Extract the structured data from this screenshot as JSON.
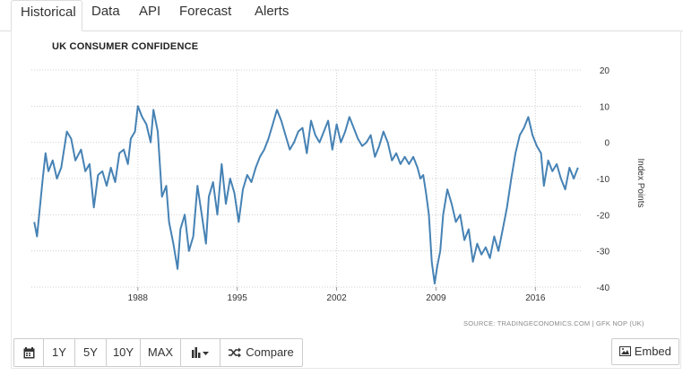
{
  "tabs": [
    {
      "label": "Historical"
    },
    {
      "label": "Data"
    },
    {
      "label": "API"
    },
    {
      "label": "Forecast"
    },
    {
      "label": "Alerts"
    }
  ],
  "toolbar": {
    "calendar_icon": "calendar-icon",
    "ranges": [
      "1Y",
      "5Y",
      "10Y",
      "MAX"
    ],
    "chart_type_icon": "bar-chart-icon",
    "compare_label": "Compare",
    "compare_icon": "shuffle-icon",
    "embed_label": "Embed",
    "embed_icon": "image-icon"
  },
  "colors": {
    "line": "#4682b4",
    "grid": "#cfcfcf"
  },
  "chart_data": {
    "type": "line",
    "title": "UK CONSUMER CONFIDENCE",
    "ylabel": "Index Points",
    "source": "SOURCE: TRADINGECONOMICS.COM | GFK NOP (UK)",
    "xlim": [
      1980.5,
      2019.2
    ],
    "ylim": [
      -40,
      20
    ],
    "yticks": [
      20,
      10,
      0,
      -10,
      -20,
      -30,
      -40
    ],
    "xticks": [
      1988,
      1995,
      2002,
      2009,
      2016
    ],
    "xtick_labels": [
      "1988",
      "1995",
      "2002",
      "2009",
      "2016"
    ],
    "grid": true,
    "series": [
      {
        "name": "UK Consumer Confidence",
        "x": [
          1980.7,
          1980.9,
          1981.1,
          1981.3,
          1981.5,
          1981.7,
          1982.0,
          1982.3,
          1982.6,
          1983.0,
          1983.3,
          1983.6,
          1984.0,
          1984.3,
          1984.6,
          1984.9,
          1985.2,
          1985.5,
          1985.8,
          1986.1,
          1986.4,
          1986.7,
          1987.0,
          1987.3,
          1987.5,
          1987.8,
          1988.0,
          1988.3,
          1988.6,
          1988.9,
          1989.1,
          1989.4,
          1989.7,
          1990.0,
          1990.2,
          1990.5,
          1990.8,
          1991.0,
          1991.3,
          1991.6,
          1991.9,
          1992.2,
          1992.5,
          1992.8,
          1993.0,
          1993.3,
          1993.6,
          1993.9,
          1994.2,
          1994.5,
          1994.8,
          1995.1,
          1995.4,
          1995.7,
          1996.0,
          1996.3,
          1996.6,
          1996.9,
          1997.2,
          1997.5,
          1997.8,
          1998.1,
          1998.4,
          1998.7,
          1999.0,
          1999.3,
          1999.6,
          1999.9,
          2000.2,
          2000.5,
          2000.8,
          2001.1,
          2001.4,
          2001.7,
          2002.0,
          2002.3,
          2002.6,
          2002.9,
          2003.2,
          2003.5,
          2003.8,
          2004.1,
          2004.4,
          2004.7,
          2005.0,
          2005.3,
          2005.6,
          2005.9,
          2006.2,
          2006.5,
          2006.8,
          2007.1,
          2007.4,
          2007.7,
          2007.9,
          2008.1,
          2008.3,
          2008.5,
          2008.7,
          2008.9,
          2009.1,
          2009.3,
          2009.5,
          2009.8,
          2010.1,
          2010.4,
          2010.7,
          2011.0,
          2011.3,
          2011.6,
          2011.9,
          2012.2,
          2012.5,
          2012.8,
          2013.1,
          2013.4,
          2013.7,
          2014.0,
          2014.3,
          2014.6,
          2014.9,
          2015.2,
          2015.5,
          2015.8,
          2016.1,
          2016.4,
          2016.6,
          2016.9,
          2017.2,
          2017.5,
          2017.8,
          2018.1,
          2018.4,
          2018.7,
          2019.0
        ],
        "values": [
          -22,
          -26,
          -18,
          -10,
          -3,
          -8,
          -5,
          -10,
          -7,
          3,
          1,
          -5,
          -2,
          -8,
          -6,
          -18,
          -9,
          -8,
          -12,
          -7,
          -11,
          -3,
          -2,
          -6,
          1,
          3,
          10,
          7,
          5,
          0,
          9,
          3,
          -15,
          -12,
          -22,
          -28,
          -35,
          -24,
          -20,
          -30,
          -26,
          -12,
          -20,
          -28,
          -15,
          -11,
          -20,
          -6,
          -17,
          -10,
          -14,
          -22,
          -13,
          -9,
          -11,
          -7,
          -4,
          -2,
          1,
          5,
          9,
          6,
          2,
          -2,
          0,
          3,
          4,
          -3,
          6,
          2,
          0,
          3,
          6,
          -2,
          5,
          0,
          3,
          7,
          4,
          1,
          -1,
          0,
          2,
          -4,
          -1,
          3,
          0,
          -5,
          -3,
          -6,
          -4,
          -6,
          -4,
          -7,
          -10,
          -9,
          -14,
          -20,
          -33,
          -39,
          -34,
          -30,
          -20,
          -13,
          -17,
          -22,
          -20,
          -27,
          -24,
          -33,
          -28,
          -31,
          -29,
          -32,
          -26,
          -30,
          -24,
          -18,
          -10,
          -3,
          2,
          4,
          7,
          2,
          -1,
          -3,
          -12,
          -5,
          -8,
          -6,
          -10,
          -13,
          -7,
          -10,
          -7
        ],
        "color": "#4682b4"
      }
    ]
  }
}
